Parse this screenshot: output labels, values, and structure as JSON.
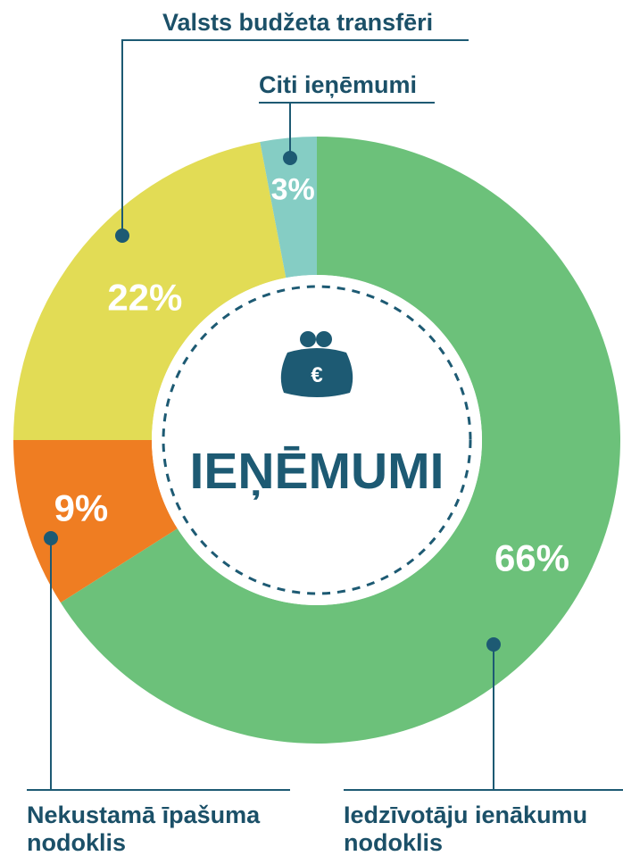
{
  "chart_data": {
    "type": "donut",
    "center_label": "IEŅĒMUMI",
    "center_icon": "€",
    "categories": [
      "Iedzīvotāju ienākumu nodoklis",
      "Nekustamā īpašuma nodoklis",
      "Valsts budžeta transfēri",
      "Citi ieņēmumi"
    ],
    "values": [
      66,
      9,
      22,
      3
    ],
    "value_labels": [
      "66%",
      "9%",
      "22%",
      "3%"
    ],
    "colors": [
      "#6cc17a",
      "#ef7d22",
      "#e2dc55",
      "#85cdc4"
    ]
  }
}
